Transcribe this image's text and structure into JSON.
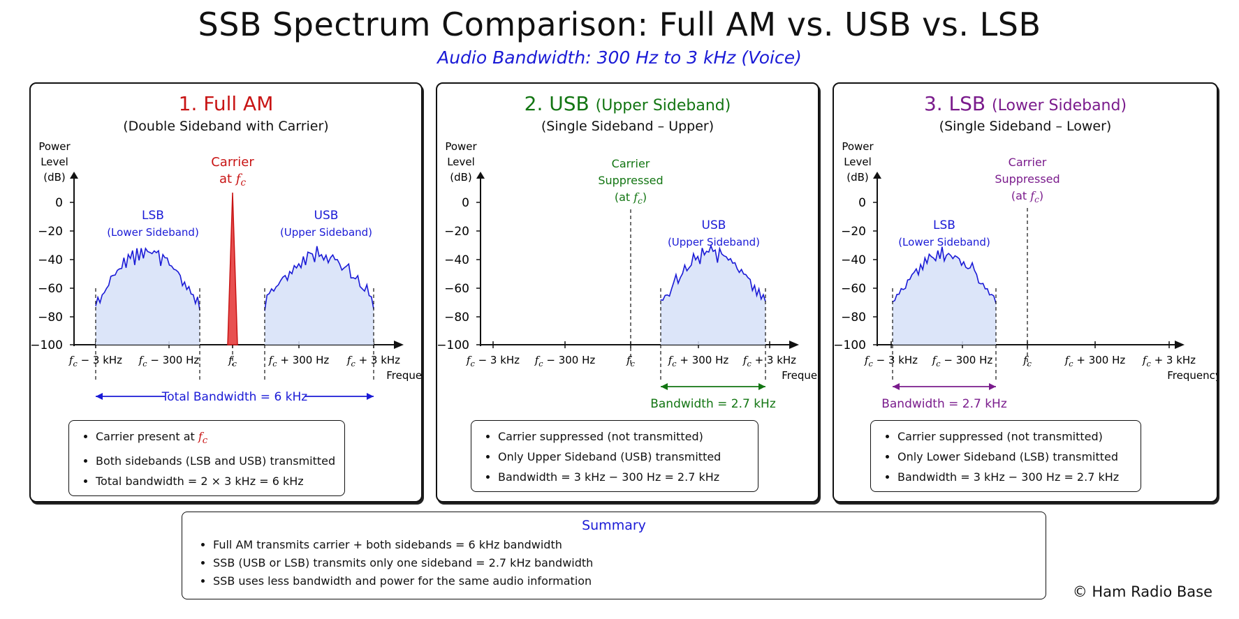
{
  "title": "SSB Spectrum Comparison: Full AM vs. USB vs. LSB",
  "subtitle": "Audio Bandwidth: 300 Hz to 3 kHz (Voice)",
  "colors": {
    "am": "#c81414",
    "usb": "#127512",
    "lsb": "#7a1b8c",
    "sideband": "#1a1ad6",
    "fill": "#d6e0f8"
  },
  "axis": {
    "ylabel_lines": [
      "Power",
      "Level",
      "(dB)"
    ],
    "yticks": [
      "0",
      "−20",
      "−40",
      "−60",
      "−80",
      "−100"
    ],
    "xlabel": "Frequency",
    "xticks": [
      "f_c − 3 kHz",
      "f_c − 300 Hz",
      "f_c",
      "f_c + 300 Hz",
      "f_c + 3 kHz"
    ]
  },
  "panels": {
    "am": {
      "title_num": "1. Full AM",
      "title_extra": "",
      "subtitle": "(Double Sideband with Carrier)",
      "carrier_lines": [
        "Carrier",
        "at f_c"
      ],
      "lsb_label": [
        "LSB",
        "(Lower Sideband)"
      ],
      "usb_label": [
        "USB",
        "(Upper Sideband)"
      ],
      "bandwidth_label": "Total Bandwidth = 6 kHz",
      "notes": [
        "Carrier present at ",
        "Both sidebands (LSB and USB) transmitted",
        "Total bandwidth = 2 × 3 kHz = 6 kHz"
      ],
      "note_fc": "f_c"
    },
    "usb": {
      "title_num": "2. USB",
      "title_extra": "(Upper Sideband)",
      "subtitle": "(Single Sideband – Upper)",
      "carrier_lines": [
        "Carrier",
        "Suppressed",
        "(at f_c)"
      ],
      "usb_label": [
        "USB",
        "(Upper Sideband)"
      ],
      "bandwidth_label": "Bandwidth = 2.7 kHz",
      "notes": [
        "Carrier suppressed (not transmitted)",
        "Only Upper Sideband (USB) transmitted",
        "Bandwidth = 3 kHz − 300 Hz = 2.7 kHz"
      ]
    },
    "lsb": {
      "title_num": "3. LSB",
      "title_extra": "(Lower Sideband)",
      "subtitle": "(Single Sideband – Lower)",
      "carrier_lines": [
        "Carrier",
        "Suppressed",
        "(at f_c)"
      ],
      "lsb_label": [
        "LSB",
        "(Lower Sideband)"
      ],
      "bandwidth_label": "Bandwidth = 2.7 kHz",
      "notes": [
        "Carrier suppressed (not transmitted)",
        "Only Lower Sideband (LSB) transmitted",
        "Bandwidth = 3 kHz − 300 Hz = 2.7 kHz"
      ]
    }
  },
  "summary": {
    "title": "Summary",
    "items": [
      "Full AM transmits carrier + both sidebands = 6 kHz bandwidth",
      "SSB (USB or LSB) transmits only one sideband = 2.7 kHz bandwidth",
      "SSB uses less bandwidth and power for the same audio information"
    ]
  },
  "copyright": "© Ham Radio Base"
}
